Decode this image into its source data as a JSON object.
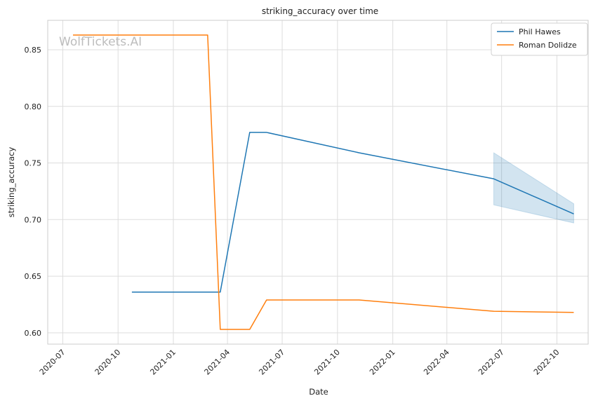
{
  "chart_data": {
    "type": "line",
    "title": "striking_accuracy over time",
    "xlabel": "Date",
    "ylabel": "striking_accuracy",
    "watermark": "WolfTickets.AI",
    "xlim": [
      "2020-06-06",
      "2022-11-22"
    ],
    "ylim": [
      0.59,
      0.876
    ],
    "x_ticks": [
      {
        "date": "2020-07-01",
        "label": "2020-07"
      },
      {
        "date": "2020-10-01",
        "label": "2020-10"
      },
      {
        "date": "2021-01-01",
        "label": "2021-01"
      },
      {
        "date": "2021-04-01",
        "label": "2021-04"
      },
      {
        "date": "2021-07-01",
        "label": "2021-07"
      },
      {
        "date": "2021-10-01",
        "label": "2021-10"
      },
      {
        "date": "2022-01-01",
        "label": "2022-01"
      },
      {
        "date": "2022-04-01",
        "label": "2022-04"
      },
      {
        "date": "2022-07-01",
        "label": "2022-07"
      },
      {
        "date": "2022-10-01",
        "label": "2022-10"
      }
    ],
    "y_ticks": [
      {
        "value": 0.6,
        "label": "0.60"
      },
      {
        "value": 0.65,
        "label": "0.65"
      },
      {
        "value": 0.7,
        "label": "0.70"
      },
      {
        "value": 0.75,
        "label": "0.75"
      },
      {
        "value": 0.8,
        "label": "0.80"
      },
      {
        "value": 0.85,
        "label": "0.85"
      }
    ],
    "grid": true,
    "legend_position": "top-right",
    "series": [
      {
        "name": "Phil Hawes",
        "color": "#1f77b4",
        "points": [
          {
            "x": "2020-10-24",
            "y": 0.636
          },
          {
            "x": "2021-03-20",
            "y": 0.636
          },
          {
            "x": "2021-05-08",
            "y": 0.777
          },
          {
            "x": "2021-06-05",
            "y": 0.777
          },
          {
            "x": "2021-11-06",
            "y": 0.759
          },
          {
            "x": "2022-06-18",
            "y": 0.736
          },
          {
            "x": "2022-10-29",
            "y": 0.705
          }
        ],
        "band": [
          {
            "x": "2022-06-18",
            "low": 0.713,
            "high": 0.759
          },
          {
            "x": "2022-10-29",
            "low": 0.697,
            "high": 0.714
          }
        ]
      },
      {
        "name": "Roman Dolidze",
        "color": "#ff7f0e",
        "points": [
          {
            "x": "2020-07-18",
            "y": 0.863
          },
          {
            "x": "2021-02-27",
            "y": 0.863
          },
          {
            "x": "2021-03-20",
            "y": 0.603
          },
          {
            "x": "2021-05-08",
            "y": 0.603
          },
          {
            "x": "2021-06-05",
            "y": 0.629
          },
          {
            "x": "2021-11-06",
            "y": 0.629
          },
          {
            "x": "2022-06-18",
            "y": 0.619
          },
          {
            "x": "2022-10-29",
            "y": 0.618
          }
        ]
      }
    ]
  }
}
